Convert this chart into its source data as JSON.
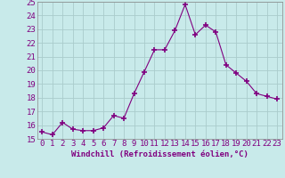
{
  "x": [
    0,
    1,
    2,
    3,
    4,
    5,
    6,
    7,
    8,
    9,
    10,
    11,
    12,
    13,
    14,
    15,
    16,
    17,
    18,
    19,
    20,
    21,
    22,
    23
  ],
  "y": [
    15.5,
    15.3,
    16.2,
    15.7,
    15.6,
    15.6,
    15.8,
    16.7,
    16.5,
    18.3,
    19.9,
    21.5,
    21.5,
    22.9,
    24.8,
    22.6,
    23.3,
    22.8,
    20.4,
    19.8,
    19.2,
    18.3,
    18.1,
    17.9
  ],
  "line_color": "#800080",
  "marker": "+",
  "marker_size": 4,
  "bg_color": "#c8eaea",
  "grid_color": "#aacccc",
  "xlabel": "Windchill (Refroidissement éolien,°C)",
  "ylim": [
    15,
    25
  ],
  "xlim": [
    -0.5,
    23.5
  ],
  "yticks": [
    15,
    16,
    17,
    18,
    19,
    20,
    21,
    22,
    23,
    24,
    25
  ],
  "xticks": [
    0,
    1,
    2,
    3,
    4,
    5,
    6,
    7,
    8,
    9,
    10,
    11,
    12,
    13,
    14,
    15,
    16,
    17,
    18,
    19,
    20,
    21,
    22,
    23
  ],
  "xlabel_fontsize": 6.5,
  "tick_fontsize": 6.5
}
